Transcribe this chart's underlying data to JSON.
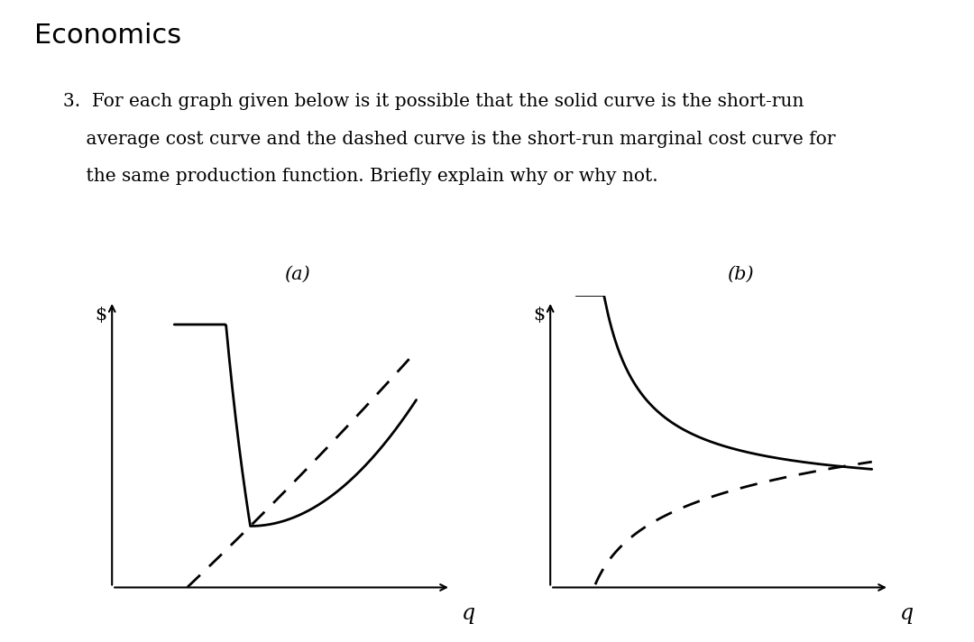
{
  "title": "Economics",
  "question_text_line1": "3.  For each graph given below is it possible that the solid curve is the short-run",
  "question_text_line2": "    average cost curve and the dashed curve is the short-run marginal cost curve for",
  "question_text_line3": "    the same production function. Briefly explain why or why not.",
  "label_a": "(a)",
  "label_b": "(b)",
  "xlabel": "q",
  "ylabel": "$",
  "background_color": "#ffffff",
  "text_color": "#000000",
  "curve_color": "#000000",
  "title_fontsize": 22,
  "question_fontsize": 14.5,
  "label_fontsize": 15,
  "axis_label_fontsize": 15
}
